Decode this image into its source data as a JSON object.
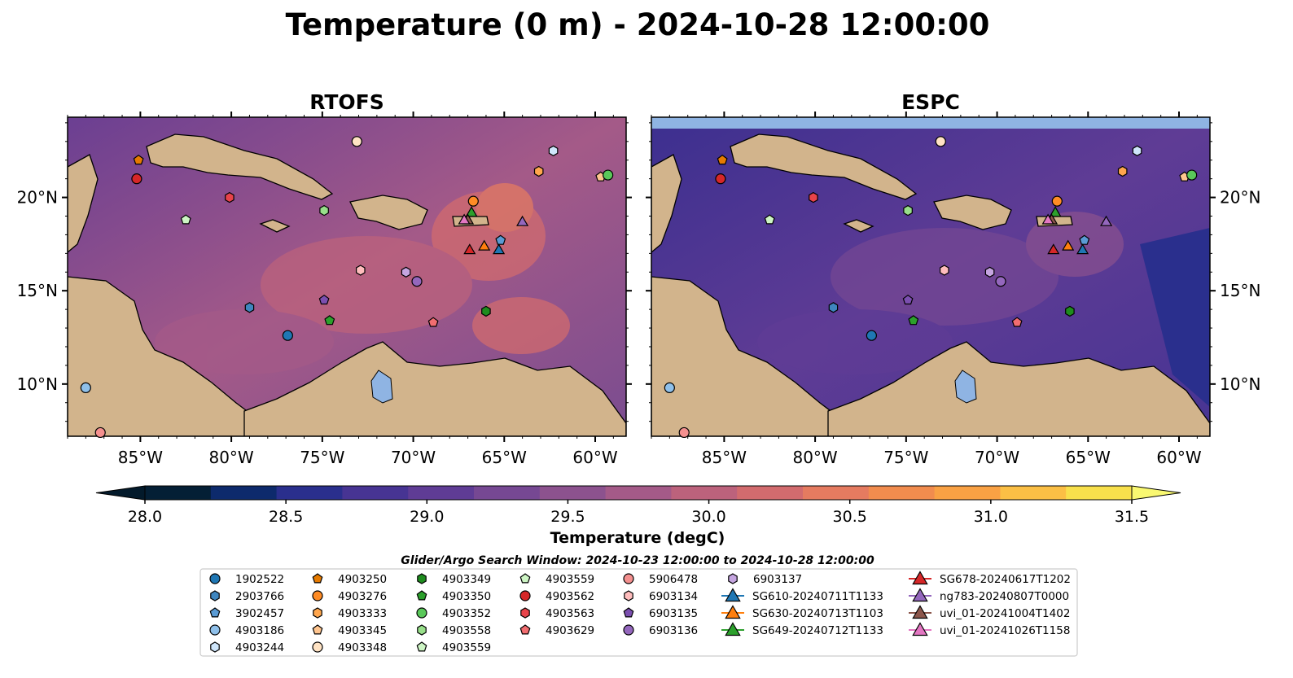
{
  "figure": {
    "title": "Temperature (0 m) - 2024-10-28 12:00:00"
  },
  "panels": [
    {
      "id": "rtofs",
      "title": "RTOFS"
    },
    {
      "id": "espc",
      "title": "ESPC"
    }
  ],
  "map": {
    "lon_range": [
      -89,
      -58.3
    ],
    "lat_range": [
      7.2,
      24.3
    ],
    "lon_ticks": [
      {
        "value": -85,
        "label": "85°W"
      },
      {
        "value": -80,
        "label": "80°W"
      },
      {
        "value": -75,
        "label": "75°W"
      },
      {
        "value": -70,
        "label": "70°W"
      },
      {
        "value": -65,
        "label": "65°W"
      },
      {
        "value": -60,
        "label": "60°W"
      }
    ],
    "lat_ticks": [
      {
        "value": 10,
        "label": "10°N"
      },
      {
        "value": 15,
        "label": "15°N"
      },
      {
        "value": 20,
        "label": "20°N"
      }
    ],
    "land_color": "#d2b48c",
    "ocean_colors": {
      "rtofs": "#7a4c90",
      "espc": "#4a3590"
    }
  },
  "colorbar": {
    "label": "Temperature (degC)",
    "min": 28.0,
    "max": 31.5,
    "tick_labels": [
      "28.0",
      "28.5",
      "29.0",
      "29.5",
      "30.0",
      "30.5",
      "31.0",
      "31.5"
    ],
    "colors": [
      "#041f35",
      "#0d2a6c",
      "#2a2f8d",
      "#473493",
      "#5f3c95",
      "#764893",
      "#8c528e",
      "#a45a88",
      "#bc627c",
      "#d26b6e",
      "#e57b60",
      "#f18c4e",
      "#f9a144",
      "#fbbf45",
      "#f8e04c"
    ],
    "under_color": "#031a2b",
    "over_color": "#f9f871"
  },
  "legend": {
    "title": "Glider/Argo Search Window: 2024-10-23 12:00:00 to 2024-10-28 12:00:00",
    "columns": [
      [
        {
          "label": "1902522",
          "shape": "circle",
          "color": "#1f77b4"
        },
        {
          "label": "2903766",
          "shape": "hexagon",
          "color": "#3f86bf"
        },
        {
          "label": "3902457",
          "shape": "pentagon",
          "color": "#5a9bd4"
        },
        {
          "label": "4903186",
          "shape": "circle",
          "color": "#8fc0ea"
        },
        {
          "label": "4903244",
          "shape": "hexagon",
          "color": "#cfe6fb"
        }
      ],
      [
        {
          "label": "4903250",
          "shape": "pentagon",
          "color": "#e67a00"
        },
        {
          "label": "4903276",
          "shape": "circle",
          "color": "#ff8c25"
        },
        {
          "label": "4903333",
          "shape": "hexagon",
          "color": "#ffa64d"
        },
        {
          "label": "4903345",
          "shape": "pentagon",
          "color": "#ffc58f"
        },
        {
          "label": "4903348",
          "shape": "circle",
          "color": "#ffe3c4"
        }
      ],
      [
        {
          "label": "4903349",
          "shape": "hexagon",
          "color": "#1e8c1e"
        },
        {
          "label": "4903350",
          "shape": "pentagon",
          "color": "#2ca02c"
        },
        {
          "label": "4903352",
          "shape": "circle",
          "color": "#5ac85a"
        },
        {
          "label": "4903558",
          "shape": "hexagon",
          "color": "#98df8a"
        },
        {
          "label": "4903559",
          "shape": "pentagon",
          "color": "#cdf5c4"
        }
      ],
      [
        {
          "label": "4903559",
          "shape": "pentagon",
          "color": "#cdf5c4"
        },
        {
          "label": "4903562",
          "shape": "circle",
          "color": "#d62728"
        },
        {
          "label": "4903563",
          "shape": "hexagon",
          "color": "#e8434a"
        },
        {
          "label": "4903629",
          "shape": "pentagon",
          "color": "#f26d70"
        }
      ],
      [
        {
          "label": "5906478",
          "shape": "circle",
          "color": "#f4908f"
        },
        {
          "label": "6903134",
          "shape": "hexagon",
          "color": "#ffbdbd"
        },
        {
          "label": "6903135",
          "shape": "pentagon",
          "color": "#7b4fb0"
        },
        {
          "label": "6903136",
          "shape": "circle",
          "color": "#9467bd"
        }
      ],
      [
        {
          "label": "6903137",
          "shape": "hexagon",
          "color": "#c5a5e0"
        },
        {
          "label": "SG610-20240711T1133",
          "shape": "triangle",
          "color": "#1f77b4",
          "line": true
        },
        {
          "label": "SG630-20240713T1103",
          "shape": "triangle",
          "color": "#ff7f0e",
          "line": true
        },
        {
          "label": "SG649-20240712T1133",
          "shape": "triangle",
          "color": "#2ca02c",
          "line": true
        }
      ],
      [
        {
          "label": "SG678-20240617T1202",
          "shape": "triangle",
          "color": "#d62728",
          "line": true
        },
        {
          "label": "ng783-20240807T0000",
          "shape": "triangle",
          "color": "#9467bd",
          "line": true
        },
        {
          "label": "uvi_01-20241004T1402",
          "shape": "triangle",
          "color": "#8c564b",
          "line": true
        },
        {
          "label": "uvi_01-20241026T1158",
          "shape": "triangle",
          "color": "#e377c2",
          "line": true
        }
      ]
    ]
  },
  "markers": [
    {
      "id": "1902522",
      "shape": "circle",
      "color": "#1f77b4",
      "lon": -76.9,
      "lat": 12.6
    },
    {
      "id": "2903766",
      "shape": "hexagon",
      "color": "#3f86bf",
      "lon": -79.0,
      "lat": 14.1
    },
    {
      "id": "3902457",
      "shape": "pentagon",
      "color": "#5a9bd4",
      "lon": -65.2,
      "lat": 17.7
    },
    {
      "id": "4903186",
      "shape": "circle",
      "color": "#8fc0ea",
      "lon": -88.0,
      "lat": 9.8
    },
    {
      "id": "4903244",
      "shape": "hexagon",
      "color": "#cfe6fb",
      "lon": -62.3,
      "lat": 22.5
    },
    {
      "id": "4903250",
      "shape": "pentagon",
      "color": "#e67a00",
      "lon": -85.1,
      "lat": 22.0
    },
    {
      "id": "4903276",
      "shape": "circle",
      "color": "#ff8c25",
      "lon": -66.7,
      "lat": 19.8
    },
    {
      "id": "4903333",
      "shape": "hexagon",
      "color": "#ffa64d",
      "lon": -63.1,
      "lat": 21.4
    },
    {
      "id": "4903345",
      "shape": "pentagon",
      "color": "#ffc58f",
      "lon": -59.7,
      "lat": 21.1
    },
    {
      "id": "4903348",
      "shape": "circle",
      "color": "#ffe3c4",
      "lon": -73.1,
      "lat": 23.0
    },
    {
      "id": "4903349",
      "shape": "hexagon",
      "color": "#1e8c1e",
      "lon": -66.0,
      "lat": 13.9
    },
    {
      "id": "4903350",
      "shape": "pentagon",
      "color": "#2ca02c",
      "lon": -74.6,
      "lat": 13.4
    },
    {
      "id": "4903352",
      "shape": "circle",
      "color": "#5ac85a",
      "lon": -59.3,
      "lat": 21.2
    },
    {
      "id": "4903558",
      "shape": "hexagon",
      "color": "#98df8a",
      "lon": -74.9,
      "lat": 19.3
    },
    {
      "id": "4903559",
      "shape": "pentagon",
      "color": "#cdf5c4",
      "lon": -82.5,
      "lat": 18.8
    },
    {
      "id": "4903562",
      "shape": "circle",
      "color": "#d62728",
      "lon": -85.2,
      "lat": 21.0
    },
    {
      "id": "4903563",
      "shape": "hexagon",
      "color": "#e8434a",
      "lon": -80.1,
      "lat": 20.0
    },
    {
      "id": "4903629",
      "shape": "pentagon",
      "color": "#f26d70",
      "lon": -68.9,
      "lat": 13.3
    },
    {
      "id": "5906478",
      "shape": "circle",
      "color": "#f4908f",
      "lon": -87.2,
      "lat": 7.4
    },
    {
      "id": "6903134",
      "shape": "hexagon",
      "color": "#ffbdbd",
      "lon": -72.9,
      "lat": 16.1
    },
    {
      "id": "6903135",
      "shape": "pentagon",
      "color": "#7b4fb0",
      "lon": -74.9,
      "lat": 14.5
    },
    {
      "id": "6903136",
      "shape": "circle",
      "color": "#9467bd",
      "lon": -69.8,
      "lat": 15.5
    },
    {
      "id": "6903137",
      "shape": "hexagon",
      "color": "#c5a5e0",
      "lon": -70.4,
      "lat": 16.0
    },
    {
      "id": "SG610-20240711T1133",
      "shape": "triangle",
      "color": "#1f77b4",
      "lon": -65.3,
      "lat": 17.2
    },
    {
      "id": "SG630-20240713T1103",
      "shape": "triangle",
      "color": "#ff7f0e",
      "lon": -66.1,
      "lat": 17.4
    },
    {
      "id": "SG649-20240712T1133",
      "shape": "triangle",
      "color": "#2ca02c",
      "lon": -66.8,
      "lat": 19.2
    },
    {
      "id": "SG678-20240617T1202",
      "shape": "triangle",
      "color": "#d62728",
      "lon": -66.9,
      "lat": 17.2
    },
    {
      "id": "ng783-20240807T0000",
      "shape": "triangle",
      "color": "#9467bd",
      "lon": -64.0,
      "lat": 18.7
    },
    {
      "id": "uvi_01-20241004T1402",
      "shape": "triangle",
      "color": "#8c564b",
      "lon": -67.0,
      "lat": 18.8
    },
    {
      "id": "uvi_01-20241026T1158",
      "shape": "triangle",
      "color": "#e377c2",
      "lon": -67.2,
      "lat": 18.8
    }
  ]
}
